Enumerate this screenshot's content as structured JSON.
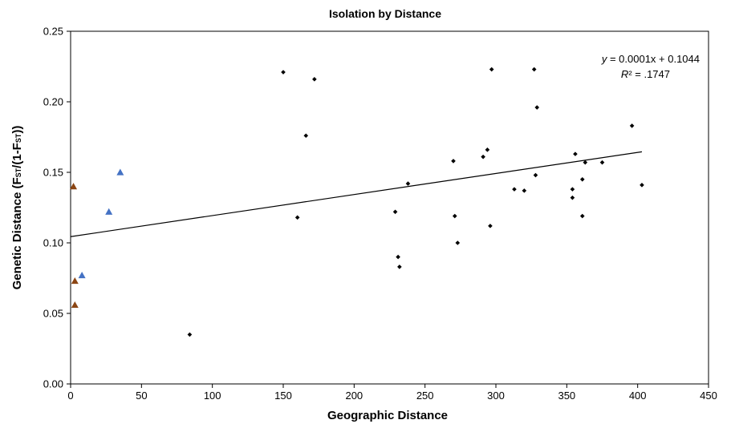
{
  "chart_data": {
    "type": "scatter",
    "title": "Isolation by Distance",
    "xlabel": "Geographic Distance",
    "ylabel": "Genetic Distance  (F<sub>ST</sub>/(1-F<sub>ST</sub>))",
    "ylabel_parts": [
      "Genetic Distance  (F",
      "ST",
      "/(1-F",
      "ST",
      "))"
    ],
    "xlim": [
      0,
      450
    ],
    "ylim": [
      0,
      0.25
    ],
    "x_ticks": [
      0,
      50,
      100,
      150,
      200,
      250,
      300,
      350,
      400,
      450
    ],
    "y_ticks": [
      0.0,
      0.05,
      0.1,
      0.15,
      0.2,
      0.25
    ],
    "x_tick_labels": [
      "0",
      "50",
      "100",
      "150",
      "200",
      "250",
      "300",
      "350",
      "400",
      "450"
    ],
    "y_tick_labels": [
      "0.00",
      "0.05",
      "0.10",
      "0.15",
      "0.20",
      "0.25"
    ],
    "grid": false,
    "legend": "none",
    "series": [
      {
        "marker": "diamond",
        "color": "#000000",
        "points": [
          [
            84,
            0.035
          ],
          [
            150,
            0.221
          ],
          [
            160,
            0.118
          ],
          [
            166,
            0.176
          ],
          [
            172,
            0.216
          ],
          [
            229,
            0.122
          ],
          [
            231,
            0.09
          ],
          [
            232,
            0.083
          ],
          [
            238,
            0.142
          ],
          [
            270,
            0.158
          ],
          [
            271,
            0.119
          ],
          [
            273,
            0.1
          ],
          [
            291,
            0.161
          ],
          [
            294,
            0.166
          ],
          [
            296,
            0.112
          ],
          [
            297,
            0.223
          ],
          [
            313,
            0.138
          ],
          [
            320,
            0.137
          ],
          [
            327,
            0.223
          ],
          [
            328,
            0.148
          ],
          [
            329,
            0.196
          ],
          [
            354,
            0.132
          ],
          [
            354,
            0.138
          ],
          [
            356,
            0.163
          ],
          [
            361,
            0.145
          ],
          [
            361,
            0.119
          ],
          [
            363,
            0.157
          ],
          [
            375,
            0.157
          ],
          [
            396,
            0.183
          ],
          [
            403,
            0.141
          ]
        ]
      },
      {
        "marker": "triangle",
        "color": "#4472C4",
        "points": [
          [
            8,
            0.077
          ],
          [
            27,
            0.122
          ],
          [
            35,
            0.15
          ]
        ]
      },
      {
        "marker": "triangle",
        "color": "#8B4513",
        "points": [
          [
            2,
            0.14
          ],
          [
            3,
            0.073
          ],
          [
            3,
            0.056
          ]
        ]
      }
    ],
    "trendline": {
      "slope": 0.0001493,
      "intercept": 0.1044,
      "x_range": [
        0,
        403
      ],
      "equation_prefix": "y",
      "equation_text": " = 0.0001x + 0.1044",
      "r2_prefix": "R",
      "r2_text": "² = .1747"
    }
  }
}
